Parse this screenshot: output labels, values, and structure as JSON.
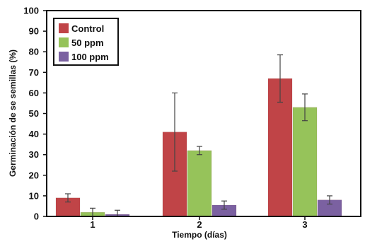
{
  "chart_data": {
    "type": "bar",
    "title": "",
    "xlabel": "Tiempo (días)",
    "ylabel": "Germinación de se semillas (%)",
    "categories": [
      "1",
      "2",
      "3"
    ],
    "ylim": [
      0,
      100
    ],
    "yticks": [
      0,
      10,
      20,
      30,
      40,
      50,
      60,
      70,
      80,
      90,
      100
    ],
    "grid": false,
    "legend_position": "top-left",
    "series": [
      {
        "name": "Control",
        "color": "#c04447",
        "values": [
          9,
          41,
          67
        ],
        "error": [
          2,
          19,
          11.5
        ]
      },
      {
        "name": "50 ppm",
        "color": "#96c35a",
        "values": [
          2,
          32,
          53
        ],
        "error": [
          2,
          2,
          6.5
        ]
      },
      {
        "name": "100 ppm",
        "color": "#7b61a1",
        "values": [
          1,
          5.5,
          8
        ],
        "error": [
          2,
          2,
          2
        ]
      }
    ]
  }
}
